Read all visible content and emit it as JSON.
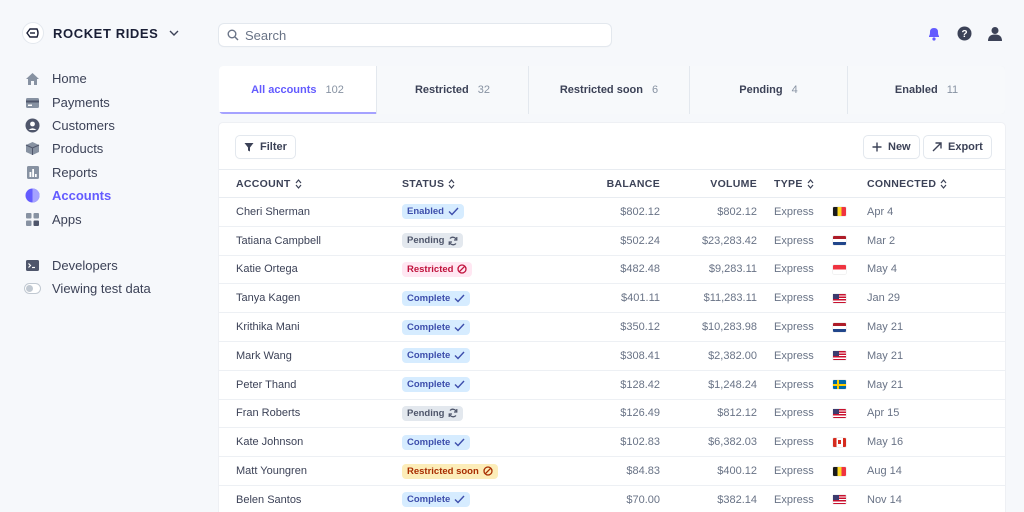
{
  "brand": {
    "name": "ROCKET RIDES",
    "logo_icon": "rocket-rides-logo-icon"
  },
  "search": {
    "placeholder": "Search"
  },
  "top_icons": [
    "bell-icon",
    "help-icon",
    "user-icon"
  ],
  "sidebar": {
    "items": [
      {
        "label": "Home",
        "icon": "home-icon"
      },
      {
        "label": "Payments",
        "icon": "payments-icon"
      },
      {
        "label": "Customers",
        "icon": "customers-icon"
      },
      {
        "label": "Products",
        "icon": "products-icon"
      },
      {
        "label": "Reports",
        "icon": "reports-icon"
      },
      {
        "label": "Accounts",
        "icon": "accounts-icon",
        "active": true
      },
      {
        "label": "Apps",
        "icon": "apps-icon"
      }
    ],
    "secondary": [
      {
        "label": "Developers",
        "icon": "terminal-icon"
      },
      {
        "label": "Viewing test data",
        "icon": "toggle-icon"
      }
    ]
  },
  "tabs": [
    {
      "label": "All accounts",
      "count": "102",
      "active": true
    },
    {
      "label": "Restricted",
      "count": "32"
    },
    {
      "label": "Restricted soon",
      "count": "6"
    },
    {
      "label": "Pending",
      "count": "4"
    },
    {
      "label": "Enabled",
      "count": "11"
    }
  ],
  "toolbar": {
    "filter_label": "Filter",
    "new_label": "New",
    "export_label": "Export"
  },
  "table": {
    "headers": {
      "account": "ACCOUNT",
      "status": "STATUS",
      "balance": "BALANCE",
      "volume": "VOLUME",
      "type": "TYPE",
      "connected": "CONNECTED"
    },
    "rows": [
      {
        "account": "Cheri Sherman",
        "status": "Enabled",
        "balance": "$802.12",
        "volume": "$802.12",
        "type": "Express",
        "flag": "be",
        "connected": "Apr 4"
      },
      {
        "account": "Tatiana Campbell",
        "status": "Pending",
        "balance": "$502.24",
        "volume": "$23,283.42",
        "type": "Express",
        "flag": "nl",
        "connected": "Mar 2"
      },
      {
        "account": "Katie Ortega",
        "status": "Restricted",
        "balance": "$482.48",
        "volume": "$9,283.11",
        "type": "Express",
        "flag": "sg",
        "connected": "May 4"
      },
      {
        "account": "Tanya Kagen",
        "status": "Complete",
        "balance": "$401.11",
        "volume": "$11,283.11",
        "type": "Express",
        "flag": "us",
        "connected": "Jan 29"
      },
      {
        "account": "Krithika Mani",
        "status": "Complete",
        "balance": "$350.12",
        "volume": "$10,283.98",
        "type": "Express",
        "flag": "nl",
        "connected": "May 21"
      },
      {
        "account": "Mark Wang",
        "status": "Complete",
        "balance": "$308.41",
        "volume": "$2,382.00",
        "type": "Express",
        "flag": "us",
        "connected": "May 21"
      },
      {
        "account": "Peter Thand",
        "status": "Complete",
        "balance": "$128.42",
        "volume": "$1,248.24",
        "type": "Express",
        "flag": "se",
        "connected": "May 21"
      },
      {
        "account": "Fran Roberts",
        "status": "Pending",
        "balance": "$126.49",
        "volume": "$812.12",
        "type": "Express",
        "flag": "us",
        "connected": "Apr 15"
      },
      {
        "account": "Kate Johnson",
        "status": "Complete",
        "balance": "$102.83",
        "volume": "$6,382.03",
        "type": "Express",
        "flag": "ca",
        "connected": "May 16"
      },
      {
        "account": "Matt Youngren",
        "status": "Restricted soon",
        "balance": "$84.83",
        "volume": "$400.12",
        "type": "Express",
        "flag": "be",
        "connected": "Aug 14"
      },
      {
        "account": "Belen Santos",
        "status": "Complete",
        "balance": "$70.00",
        "volume": "$382.14",
        "type": "Express",
        "flag": "us",
        "connected": "Nov 14"
      }
    ]
  },
  "colors": {
    "accent": "#635bff",
    "enabled_badge": "#d6ecff",
    "pending_badge": "#e3e8ee",
    "restricted_badge": "#ffe7f2",
    "restricted_soon_badge": "#fcedb9"
  }
}
